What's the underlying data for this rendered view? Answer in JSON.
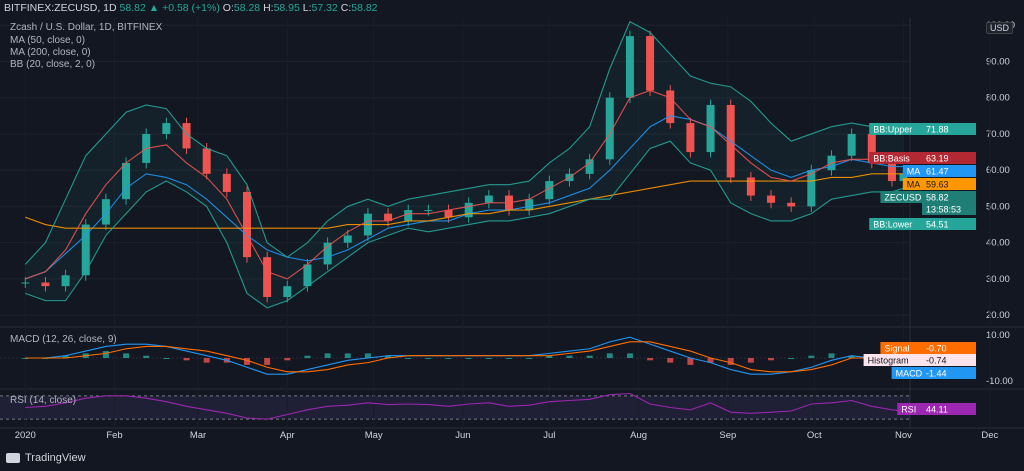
{
  "header": {
    "symbol": "BITFINEX:ZECUSD, 1D",
    "close": "58.82",
    "change": "+0.58 (+1%)",
    "open_label": "O:",
    "open": "58.28",
    "high_label": "H:",
    "high": "58.95",
    "low_label": "L:",
    "low": "57.32",
    "close_label": "C:",
    "close_val": "58.82"
  },
  "legend": {
    "title": "Zcash / U.S. Dollar, 1D, BITFINEX",
    "ma50": "MA (50, close, 0)",
    "ma200": "MA (200, close, 0)",
    "bb": "BB (20, close, 2, 0)",
    "macd": "MACD (12, 26, close, 9)",
    "rsi": "RSI (14, close)"
  },
  "currency": "USD",
  "brand": "TradingView",
  "colors": {
    "up": "#26a69a",
    "down": "#ef5350",
    "background": "#131722",
    "ma50": "#2196f3",
    "ma200": "#ff9800",
    "bb_basis": "#ef5350",
    "bb_band": "#26a69a",
    "macd": "#2196f3",
    "signal": "#ff6d00",
    "rsi": "#9c27b0"
  },
  "chart_data": [
    {
      "type": "line",
      "title": "Zcash / U.S. Dollar, 1D, BITFINEX",
      "ylabel": "USD",
      "x_ticks": [
        "2020",
        "Feb",
        "Mar",
        "Apr",
        "May",
        "Jun",
        "Jul",
        "Aug",
        "Sep",
        "Oct",
        "Nov",
        "Dec"
      ],
      "y_ticks": [
        20,
        30,
        40,
        50,
        60,
        70,
        80,
        90,
        100
      ],
      "ylim": [
        17,
        102
      ],
      "x": [
        "2020-01-01",
        "2020-01-08",
        "2020-01-15",
        "2020-01-22",
        "2020-01-29",
        "2020-02-05",
        "2020-02-12",
        "2020-02-19",
        "2020-02-26",
        "2020-03-04",
        "2020-03-11",
        "2020-03-18",
        "2020-03-25",
        "2020-04-01",
        "2020-04-08",
        "2020-04-15",
        "2020-04-22",
        "2020-04-29",
        "2020-05-06",
        "2020-05-13",
        "2020-05-20",
        "2020-05-27",
        "2020-06-03",
        "2020-06-10",
        "2020-06-17",
        "2020-06-24",
        "2020-07-01",
        "2020-07-08",
        "2020-07-15",
        "2020-07-22",
        "2020-07-29",
        "2020-08-05",
        "2020-08-12",
        "2020-08-19",
        "2020-08-26",
        "2020-09-02",
        "2020-09-09",
        "2020-09-16",
        "2020-09-23",
        "2020-09-30",
        "2020-10-07",
        "2020-10-14",
        "2020-10-21",
        "2020-10-28",
        "2020-11-01"
      ],
      "series": [
        {
          "name": "ZECUSD",
          "values": [
            29,
            28,
            31,
            45,
            52,
            62,
            70,
            73,
            66,
            59,
            54,
            36,
            25,
            28,
            34,
            40,
            42,
            48,
            46,
            49,
            49,
            47,
            51,
            53,
            49,
            52,
            57,
            59,
            63,
            80,
            97,
            82,
            73,
            65,
            78,
            58,
            53,
            51,
            50,
            60,
            64,
            70,
            62,
            57,
            59
          ]
        },
        {
          "name": "MA",
          "values": [
            30,
            32,
            37,
            42,
            48,
            55,
            59,
            58,
            56,
            52,
            47,
            42,
            38,
            36,
            35,
            36,
            38,
            41,
            44,
            45,
            46,
            46,
            48,
            49,
            49,
            50,
            51,
            53,
            55,
            60,
            66,
            72,
            75,
            74,
            72,
            68,
            64,
            60,
            58,
            60,
            61,
            63,
            62,
            61,
            61
          ]
        },
        {
          "name": "MA",
          "values": [
            47,
            45,
            44,
            44,
            44,
            44,
            44,
            44,
            44,
            44,
            44,
            44,
            44,
            44,
            44,
            44,
            45,
            45,
            45,
            46,
            46,
            47,
            48,
            48,
            49,
            49,
            50,
            51,
            52,
            53,
            54,
            55,
            56,
            57,
            57,
            57,
            57,
            57,
            57,
            57,
            58,
            58,
            59,
            59,
            59
          ]
        },
        {
          "name": "BB:Upper",
          "values": [
            34,
            40,
            52,
            64,
            70,
            76,
            78,
            77,
            70,
            66,
            64,
            56,
            40,
            36,
            40,
            46,
            50,
            52,
            50,
            52,
            53,
            54,
            55,
            56,
            56,
            57,
            62,
            66,
            72,
            88,
            101,
            98,
            92,
            86,
            84,
            83,
            79,
            73,
            68,
            70,
            72,
            73,
            72,
            72,
            72
          ]
        },
        {
          "name": "BB:Basis",
          "values": [
            30,
            32,
            38,
            48,
            56,
            62,
            66,
            67,
            62,
            58,
            52,
            42,
            32,
            30,
            34,
            39,
            43,
            46,
            46,
            48,
            48,
            49,
            50,
            51,
            51,
            52,
            55,
            58,
            62,
            70,
            80,
            82,
            80,
            74,
            72,
            67,
            62,
            58,
            57,
            59,
            62,
            63,
            63,
            63,
            63
          ]
        },
        {
          "name": "BB:Lower",
          "values": [
            26,
            24,
            24,
            32,
            42,
            48,
            54,
            57,
            54,
            50,
            40,
            26,
            22,
            24,
            28,
            32,
            36,
            40,
            42,
            44,
            43,
            44,
            45,
            46,
            46,
            47,
            48,
            50,
            52,
            52,
            59,
            66,
            68,
            62,
            60,
            51,
            48,
            46,
            46,
            48,
            52,
            53,
            54,
            54,
            55
          ]
        }
      ],
      "price_labels": [
        {
          "label": "BB:Upper",
          "value": "71.88"
        },
        {
          "label": "BB:Basis",
          "value": "63.19"
        },
        {
          "label": "MA",
          "value": "61.47"
        },
        {
          "label": "MA",
          "value": "59.63"
        },
        {
          "label": "ZECUSD",
          "value": "58.82"
        },
        {
          "label": "",
          "value": "13:58:53"
        },
        {
          "label": "BB:Lower",
          "value": "54.51"
        }
      ]
    },
    {
      "type": "line",
      "title": "MACD (12, 26, close, 9)",
      "y_ticks": [
        10.0,
        -10.0
      ],
      "y_tick_labels": [
        "10.00",
        "-10.00"
      ],
      "ylim": [
        -13,
        13
      ],
      "series": [
        {
          "name": "MACD",
          "values": [
            0,
            0,
            1,
            3,
            5,
            6,
            6,
            5,
            3,
            1,
            -1,
            -4,
            -7,
            -7,
            -5,
            -3,
            -1,
            0,
            1,
            1,
            1,
            1,
            1,
            1,
            1,
            1,
            2,
            3,
            4,
            7,
            9,
            6,
            3,
            0,
            -2,
            -5,
            -7,
            -7,
            -6,
            -4,
            -1,
            1,
            0,
            -1,
            -1.44
          ]
        },
        {
          "name": "Signal",
          "values": [
            0,
            0,
            0,
            1,
            2,
            4,
            5,
            5,
            4,
            3,
            1,
            -1,
            -4,
            -6,
            -6,
            -5,
            -3,
            -2,
            0,
            1,
            1,
            1,
            1,
            1,
            1,
            1,
            1,
            2,
            3,
            5,
            7,
            7,
            5,
            3,
            0,
            -2,
            -5,
            -6,
            -6,
            -5,
            -3,
            0,
            0,
            0,
            -0.7
          ]
        },
        {
          "name": "Histogram",
          "values": [
            0,
            0,
            1,
            2,
            3,
            2,
            1,
            0,
            -1,
            -2,
            -2,
            -3,
            -3,
            -1,
            1,
            2,
            2,
            2,
            1,
            0,
            0,
            0,
            0,
            0,
            0,
            0,
            1,
            1,
            1,
            2,
            2,
            -1,
            -2,
            -3,
            -2,
            -3,
            -2,
            -1,
            0,
            1,
            2,
            1,
            0,
            -1,
            -0.74
          ]
        }
      ],
      "price_labels": [
        {
          "label": "Signal",
          "value": "-0.70"
        },
        {
          "label": "Histogram",
          "value": "-0.74"
        },
        {
          "label": "MACD",
          "value": "-1.44"
        }
      ]
    },
    {
      "type": "line",
      "title": "RSI (14, close)",
      "ylim": [
        20,
        80
      ],
      "series": [
        {
          "name": "RSI",
          "values": [
            50,
            52,
            58,
            66,
            70,
            70,
            66,
            60,
            52,
            46,
            40,
            32,
            30,
            38,
            46,
            52,
            54,
            58,
            55,
            56,
            55,
            52,
            56,
            58,
            52,
            54,
            60,
            62,
            64,
            72,
            74,
            56,
            50,
            46,
            58,
            42,
            40,
            42,
            44,
            56,
            58,
            62,
            52,
            46,
            44.11
          ]
        }
      ],
      "price_labels": [
        {
          "label": "RSI",
          "value": "44.11"
        }
      ]
    }
  ]
}
